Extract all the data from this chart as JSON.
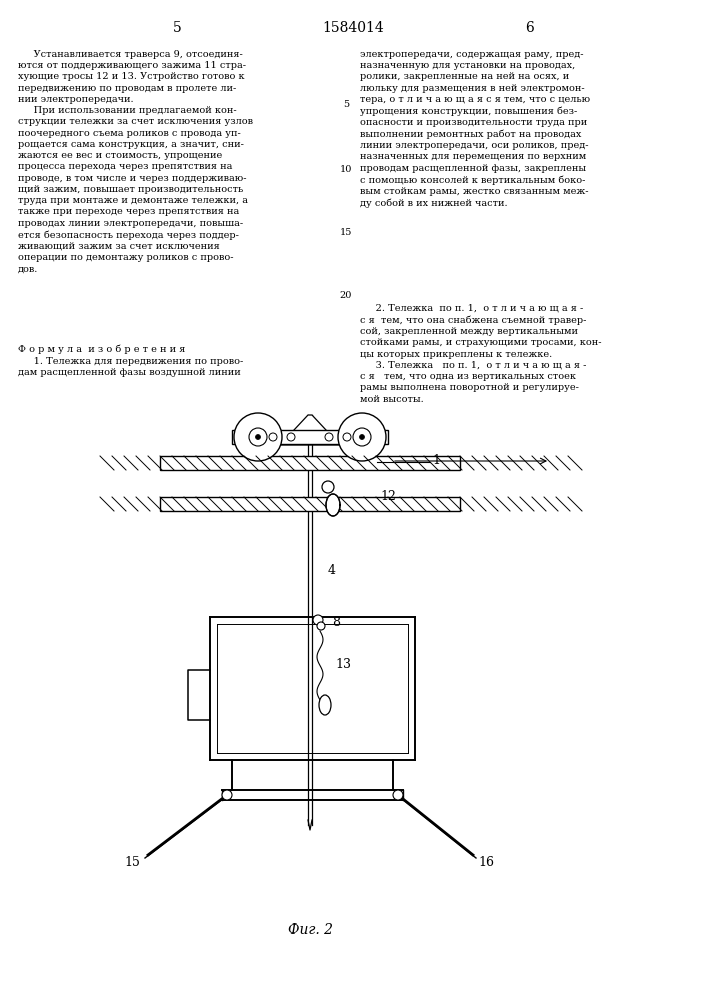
{
  "title": "1584014",
  "page_left": "5",
  "page_right": "6",
  "fig_label": "Фиг. 2",
  "background": "#ffffff",
  "text_color": "#000000",
  "left_col_text": "     Устанавливается траверса 9, отсоединя-\nются от поддерживающего зажима 11 стра-\nхующие тросы 12 и 13. Устройство готово к\nпередвижению по проводам в пролете ли-\nнии электропередачи.\n     При использовании предлагаемой кон-\nструкции тележки за счет исключения узлов\nпоочередного съема роликов с провода уп-\nрощается сама конструкция, а значит, сни-\nжаются ее вес и стоимость, упрощение\nпроцесса перехода через препятствия на\nпроводе, в том числе и через поддерживаю-\nщий зажим, повышает производительность\nтруда при монтаже и демонтаже тележки, а\nтакже при переходе через препятствия на\nпроводах линии электропередачи, повыша-\nется безопасность перехода через поддер-\nживающий зажим за счет исключения\nоперации по демонтажу роликов с прово-\nдов.",
  "formula_text": "Ф о р м у л а  и з о б р е т е н и я\n     1. Тележка для передвижения по прово-\nдам расщепленной фазы воздушной линии",
  "right_text1": "электропередачи, содержащая раму, пред-\nназначенную для установки на проводах,\nролики, закрепленные на ней на осях, и\nлюльку для размещения в ней электромон-\nтера, о т л и ч а ю щ а я с я тем, что с целью\nупрощения конструкции, повышения без-\nопасности и производительности труда при\nвыполнении ремонтных работ на проводах\nлинии электропередачи, оси роликов, пред-\nназначенных для перемещения по верхним\nпроводам расщепленной фазы, закреплены\nс помощью консолей к вертикальным боко-\nвым стойкам рамы, жестко связанным меж-\nду собой в их нижней части.",
  "line_num_5": "5",
  "line_num_10": "10",
  "line_num_15": "15",
  "line_num_20": "20",
  "right_text2": "     2. Тележка  по п. 1,  о т л и ч а ю щ а я -\nс я  тем, что она снабжена съемной травер-\nсой, закрепленной между вертикальными\nстойками рамы, и страхующими тросами, кон-\nцы которых прикреплены к тележке.\n     3. Тележка   по п. 1,  о т л и ч а ю щ а я -\nс я   тем, что одна из вертикальных стоек\nрамы выполнена поворотной и регулируе-\nмой высоты."
}
